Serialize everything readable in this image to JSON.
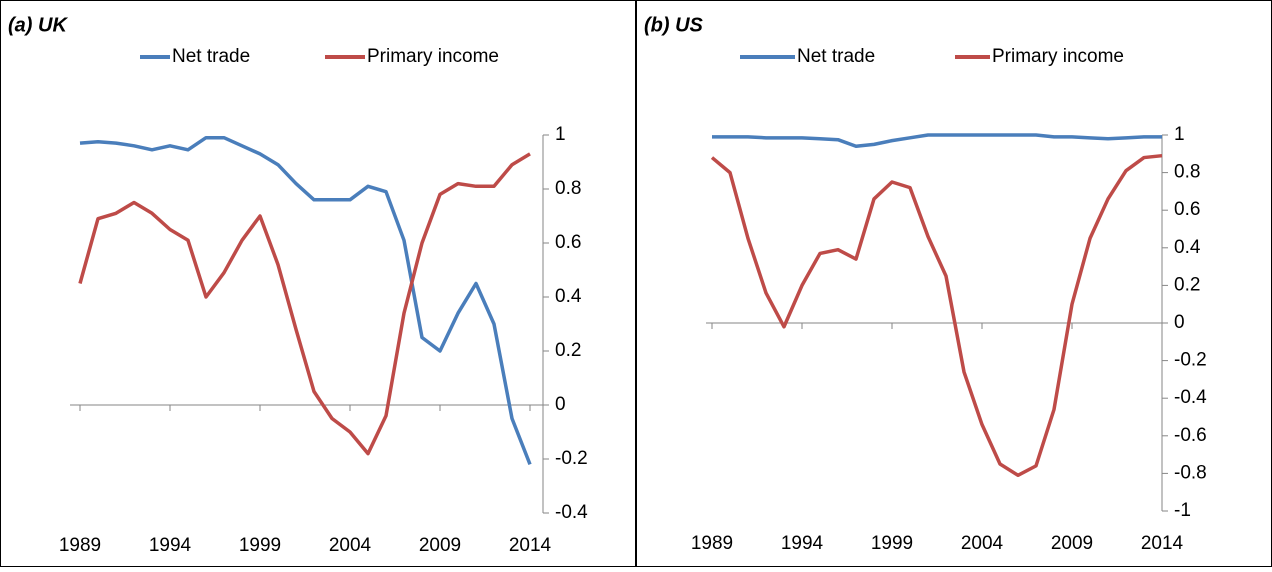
{
  "chart_data": [
    {
      "type": "line",
      "title": "(a) UK",
      "x": [
        1989,
        1990,
        1991,
        1992,
        1993,
        1994,
        1995,
        1996,
        1997,
        1998,
        1999,
        2000,
        2001,
        2002,
        2003,
        2004,
        2005,
        2006,
        2007,
        2008,
        2009,
        2010,
        2011,
        2012,
        2013,
        2014
      ],
      "xlim": [
        1989,
        2014
      ],
      "xticks": [
        1989,
        1994,
        1999,
        2004,
        2009,
        2014
      ],
      "ylim": [
        -0.4,
        1
      ],
      "yticks": [
        -0.4,
        -0.2,
        0,
        0.2,
        0.4,
        0.6,
        0.8,
        1
      ],
      "legend": "top",
      "series": [
        {
          "name": "Net trade",
          "color": "#4a7ebb",
          "values": [
            0.97,
            0.975,
            0.97,
            0.96,
            0.945,
            0.96,
            0.945,
            0.99,
            0.99,
            0.96,
            0.93,
            0.89,
            0.82,
            0.76,
            0.76,
            0.76,
            0.81,
            0.79,
            0.61,
            0.25,
            0.2,
            0.34,
            0.45,
            0.3,
            -0.05,
            -0.22
          ]
        },
        {
          "name": "Primary income",
          "color": "#be4b48",
          "values": [
            0.45,
            0.69,
            0.71,
            0.75,
            0.71,
            0.65,
            0.61,
            0.4,
            0.49,
            0.61,
            0.7,
            0.52,
            0.28,
            0.05,
            -0.05,
            -0.1,
            -0.18,
            -0.04,
            0.34,
            0.6,
            0.78,
            0.82,
            0.81,
            0.81,
            0.89,
            0.93
          ]
        }
      ]
    },
    {
      "type": "line",
      "title": "(b) US",
      "x": [
        1989,
        1990,
        1991,
        1992,
        1993,
        1994,
        1995,
        1996,
        1997,
        1998,
        1999,
        2000,
        2001,
        2002,
        2003,
        2004,
        2005,
        2006,
        2007,
        2008,
        2009,
        2010,
        2011,
        2012,
        2013,
        2014
      ],
      "xlim": [
        1989,
        2014
      ],
      "xticks": [
        1989,
        1994,
        1999,
        2004,
        2009,
        2014
      ],
      "ylim": [
        -1,
        1
      ],
      "yticks": [
        -1,
        -0.8,
        -0.6,
        -0.4,
        -0.2,
        0,
        0.2,
        0.4,
        0.6,
        0.8,
        1
      ],
      "legend": "top",
      "series": [
        {
          "name": "Net trade",
          "color": "#4a7ebb",
          "values": [
            0.99,
            0.99,
            0.99,
            0.985,
            0.985,
            0.985,
            0.98,
            0.975,
            0.94,
            0.95,
            0.97,
            0.985,
            1.0,
            1.0,
            1.0,
            1.0,
            1.0,
            1.0,
            1.0,
            0.99,
            0.99,
            0.985,
            0.98,
            0.985,
            0.99,
            0.99
          ]
        },
        {
          "name": "Primary income",
          "color": "#be4b48",
          "values": [
            0.88,
            0.8,
            0.45,
            0.16,
            -0.02,
            0.2,
            0.37,
            0.39,
            0.34,
            0.66,
            0.75,
            0.72,
            0.46,
            0.25,
            -0.26,
            -0.54,
            -0.75,
            -0.81,
            -0.76,
            -0.46,
            0.1,
            0.45,
            0.66,
            0.81,
            0.88,
            0.89
          ]
        }
      ]
    }
  ]
}
